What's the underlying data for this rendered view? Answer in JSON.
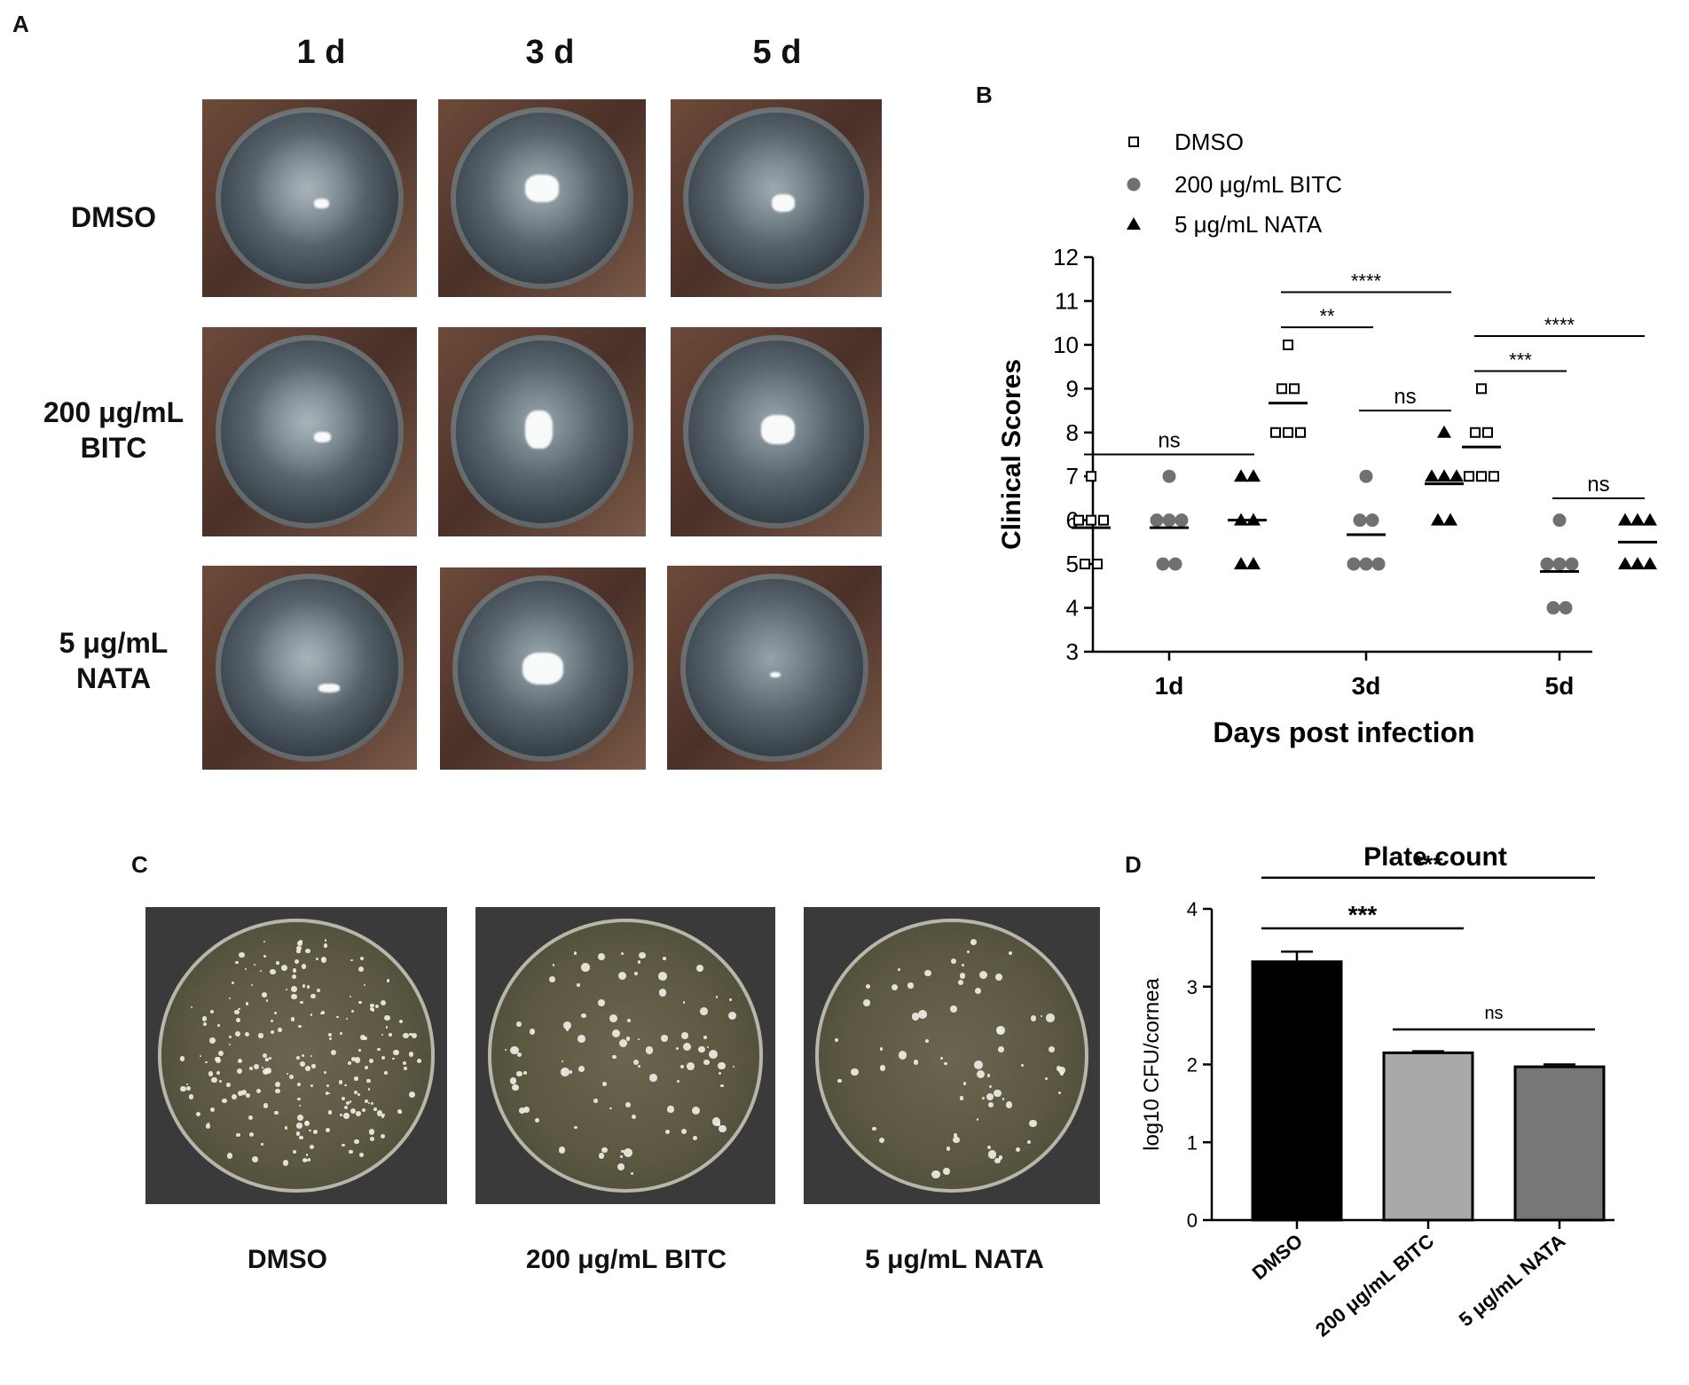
{
  "panel_letters": {
    "a": "A",
    "b": "B",
    "c": "C",
    "d": "D"
  },
  "panel_a": {
    "columns": [
      "1 d",
      "3 d",
      "5 d"
    ],
    "rows": [
      [
        "DMSO"
      ],
      [
        "200 μg/mL",
        "BITC"
      ],
      [
        "5 μg/mL",
        "NATA"
      ]
    ]
  },
  "panel_c": {
    "labels": [
      "DMSO",
      "200 μg/mL BITC",
      "5 μg/mL NATA"
    ]
  },
  "chart_data": [
    {
      "type": "scatter",
      "title": "",
      "xlabel": "Days post infection",
      "ylabel": "Clinical Scores",
      "ylim": [
        3,
        12
      ],
      "yticks": [
        3,
        4,
        5,
        6,
        7,
        8,
        9,
        10,
        11,
        12
      ],
      "categories": [
        "1d",
        "3d",
        "5d"
      ],
      "legend_position": "top-left",
      "series": [
        {
          "name": "DMSO",
          "marker": "open-square",
          "color": "#000000",
          "points": [
            [
              7,
              6,
              6,
              6,
              5,
              5
            ],
            [
              10,
              9,
              9,
              8,
              8,
              8
            ],
            [
              9,
              8,
              8,
              7,
              7,
              7
            ]
          ],
          "means": [
            5.83,
            8.67,
            7.67
          ]
        },
        {
          "name": "200 μg/mL BITC",
          "marker": "filled-circle",
          "color": "#707070",
          "points": [
            [
              7,
              6,
              6,
              6,
              5,
              5
            ],
            [
              7,
              6,
              5,
              5,
              5,
              6
            ],
            [
              6,
              5,
              5,
              5,
              4,
              4
            ]
          ],
          "means": [
            5.83,
            5.67,
            4.83
          ]
        },
        {
          "name": "5 μg/mL NATA",
          "marker": "filled-triangle",
          "color": "#000000",
          "points": [
            [
              7,
              7,
              6,
              6,
              5,
              5
            ],
            [
              8,
              7,
              7,
              7,
              6,
              6
            ],
            [
              6,
              6,
              6,
              5,
              5,
              5
            ]
          ],
          "means": [
            6.0,
            6.83,
            5.5
          ]
        }
      ],
      "significance": [
        {
          "label": "ns",
          "group": "1d",
          "from": 0,
          "to": 2,
          "y": 7.5
        },
        {
          "label": "****",
          "group": "3d",
          "from": 0,
          "to": 2,
          "y": 11.2
        },
        {
          "label": "**",
          "group": "3d",
          "from": 0,
          "to": 1,
          "y": 10.4
        },
        {
          "label": "ns",
          "group": "3d",
          "from": 1,
          "to": 2,
          "y": 8.5
        },
        {
          "label": "****",
          "group": "5d",
          "from": 0,
          "to": 2,
          "y": 10.2
        },
        {
          "label": "***",
          "group": "5d",
          "from": 0,
          "to": 1,
          "y": 9.4
        },
        {
          "label": "ns",
          "group": "5d",
          "from": 1,
          "to": 2,
          "y": 6.5
        }
      ]
    },
    {
      "type": "bar",
      "title": "Plate count",
      "xlabel": "",
      "ylabel": "log10 CFU/cornea",
      "ylim": [
        0,
        4
      ],
      "yticks": [
        0,
        1,
        2,
        3,
        4
      ],
      "categories": [
        "DMSO",
        "200 μg/mL BITC",
        "5 μg/mL NATA"
      ],
      "values": [
        3.32,
        2.15,
        1.97
      ],
      "errors": [
        0.13,
        0.02,
        0.03
      ],
      "colors": [
        "#000000",
        "#a9a9a9",
        "#777777"
      ],
      "significance": [
        {
          "label": "***",
          "from": 0,
          "to": 2,
          "y": 4.4
        },
        {
          "label": "***",
          "from": 0,
          "to": 1,
          "y": 3.75
        },
        {
          "label": "ns",
          "from": 1,
          "to": 2,
          "y": 2.45
        }
      ]
    }
  ]
}
